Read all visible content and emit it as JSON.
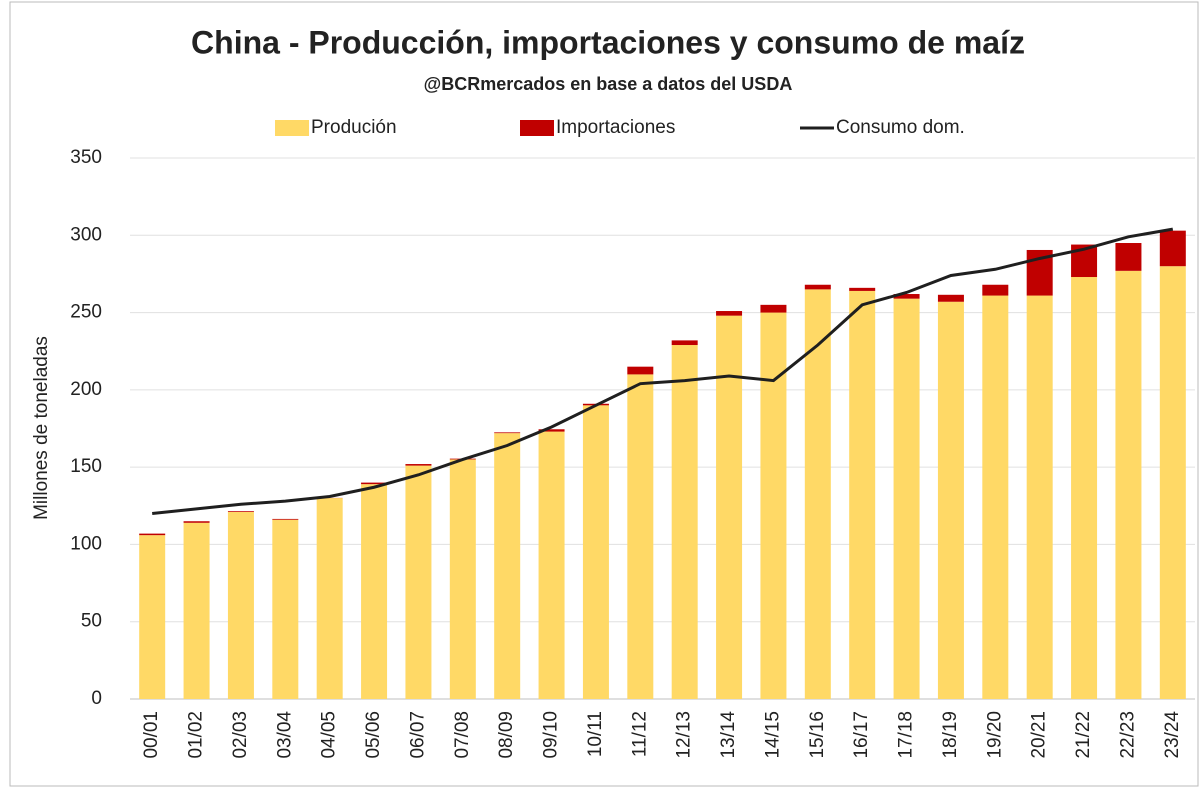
{
  "chart_data": {
    "type": "stacked_bar_line",
    "title": "China - Producción, importaciones y consumo de maíz",
    "subtitle": "@BCRmercados en base a datos del USDA",
    "y_label": "Millones de toneladas",
    "categories": [
      "00/01",
      "01/02",
      "02/03",
      "03/04",
      "04/05",
      "05/06",
      "06/07",
      "07/08",
      "08/09",
      "09/10",
      "10/11",
      "11/12",
      "12/13",
      "13/14",
      "14/15",
      "15/16",
      "16/17",
      "17/18",
      "18/19",
      "19/20",
      "20/21",
      "21/22",
      "22/23",
      "23/24"
    ],
    "series": [
      {
        "name": "Produción",
        "color": "#ffd966",
        "kind": "bar",
        "values": [
          106,
          114,
          121,
          116,
          130,
          139,
          151,
          155,
          172,
          173,
          190,
          210,
          229,
          248,
          250,
          265,
          264,
          259,
          257,
          261,
          261,
          273,
          277,
          280
        ]
      },
      {
        "name": "Importaciones",
        "color": "#c00000",
        "kind": "bar",
        "values": [
          1,
          1,
          0.5,
          0.5,
          0.1,
          1,
          1,
          0.5,
          0.5,
          1.5,
          1,
          5,
          3,
          3,
          5,
          3,
          2,
          3,
          4.5,
          7,
          29.5,
          21,
          18,
          23
        ]
      },
      {
        "name": "Consumo dom.",
        "color": "#1f1f1f",
        "kind": "line",
        "values": [
          120,
          123,
          126,
          128,
          131,
          137,
          145,
          155,
          164,
          176,
          190,
          204,
          206,
          209,
          206,
          229,
          255,
          263,
          274,
          278,
          285,
          291,
          299,
          304
        ]
      }
    ],
    "ylim": [
      0,
      350
    ],
    "yticks": [
      0,
      50,
      100,
      150,
      200,
      250,
      300,
      350
    ],
    "grid": true,
    "legend": "top"
  }
}
